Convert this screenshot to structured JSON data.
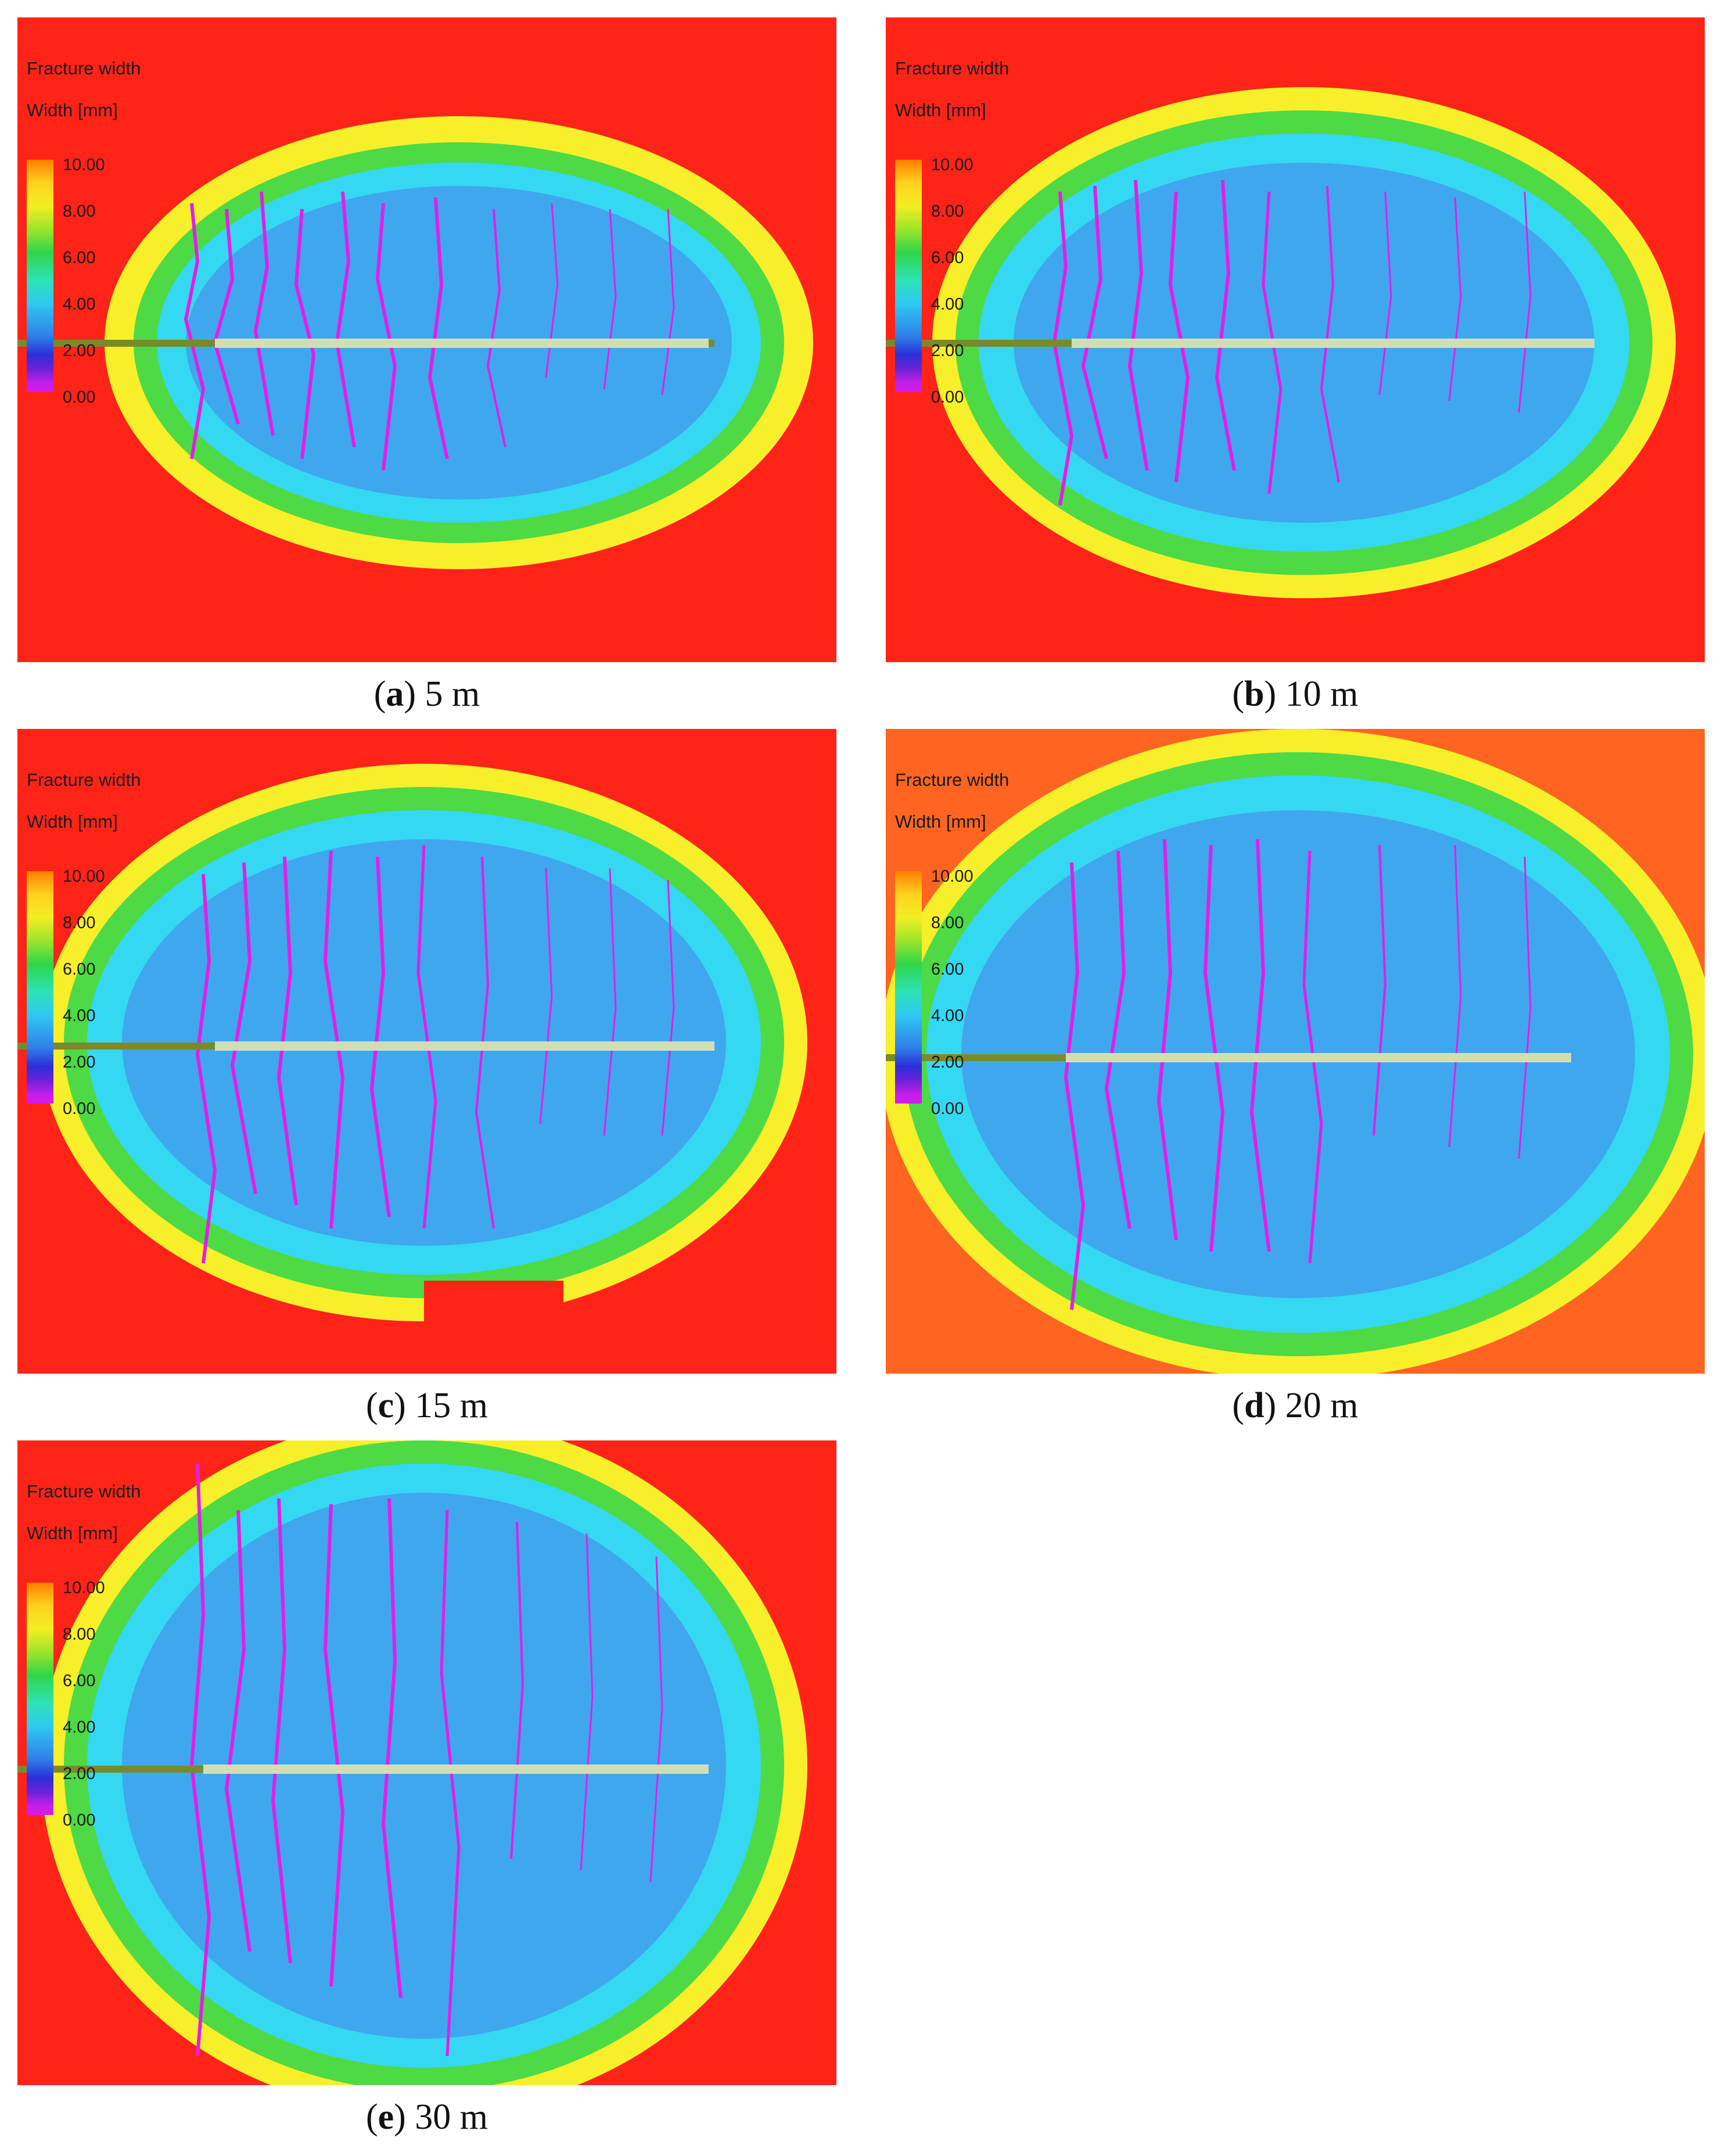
{
  "legend": {
    "title": "Fracture width",
    "unit_label": "Width [mm]",
    "ticks": [
      "10.00",
      "8.00",
      "6.00",
      "4.00",
      "2.00",
      "0.00"
    ]
  },
  "panels": [
    {
      "letter": "a",
      "label": "5 m"
    },
    {
      "letter": "b",
      "label": "10 m"
    },
    {
      "letter": "c",
      "label": "15 m"
    },
    {
      "letter": "d",
      "label": "20 m"
    },
    {
      "letter": "e",
      "label": "30 m"
    }
  ],
  "colors": {
    "background": "#ff2318",
    "outer_ring": "#f7ef2a",
    "mid_ring": "#35d8f2",
    "interior": "#3fa7ee",
    "fractures": "#e11fe6",
    "wellbore": "#7a8a2a"
  }
}
